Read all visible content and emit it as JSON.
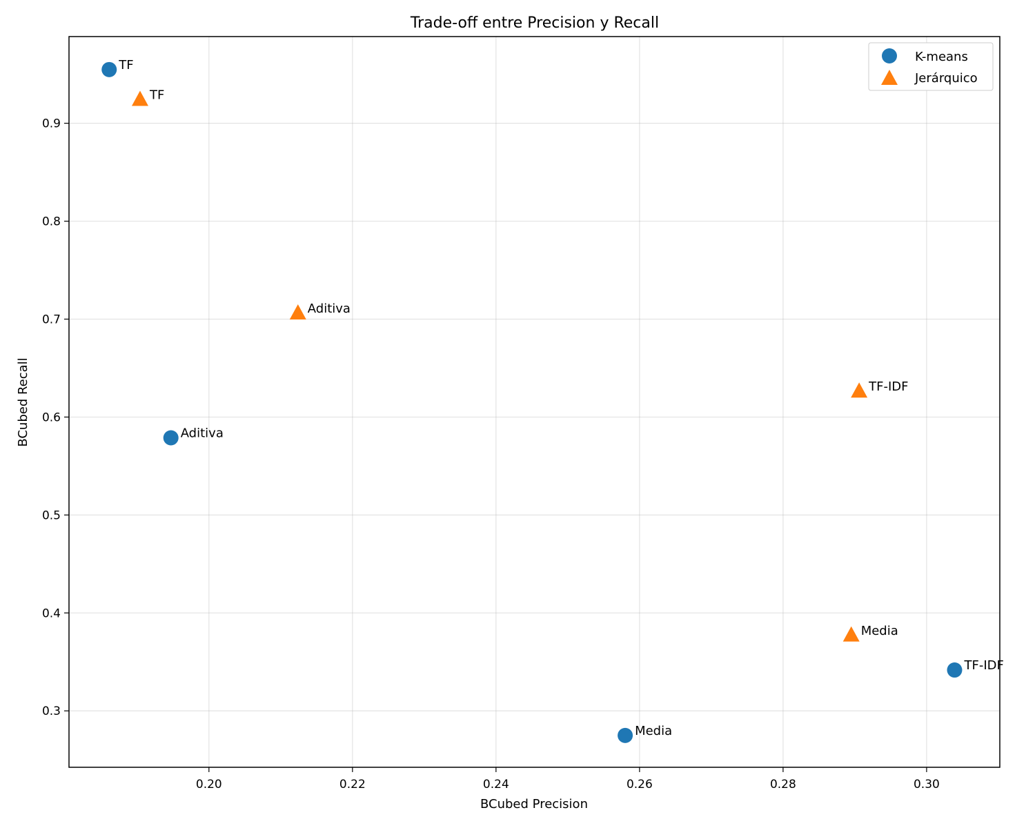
{
  "chart_data": {
    "type": "scatter",
    "title": "Trade-off entre Precision y Recall",
    "xlabel": "BCubed Precision",
    "ylabel": "BCubed Recall",
    "xlim": [
      0.1805,
      0.3102
    ],
    "ylim": [
      0.2424,
      0.9885
    ],
    "xticks": [
      0.2,
      0.22,
      0.24,
      0.26,
      0.28,
      0.3
    ],
    "xtick_labels": [
      "0.20",
      "0.22",
      "0.24",
      "0.26",
      "0.28",
      "0.30"
    ],
    "yticks": [
      0.3,
      0.4,
      0.5,
      0.6,
      0.7,
      0.8,
      0.9
    ],
    "ytick_labels": [
      "0.3",
      "0.4",
      "0.5",
      "0.6",
      "0.7",
      "0.8",
      "0.9"
    ],
    "grid": true,
    "legend_position": "top-right",
    "series": [
      {
        "name": "K-means",
        "marker": "circle",
        "color": "#1f77b4",
        "points": [
          {
            "x": 0.1861,
            "y": 0.9548,
            "label": "TF"
          },
          {
            "x": 0.1947,
            "y": 0.5788,
            "label": "Aditiva"
          },
          {
            "x": 0.258,
            "y": 0.2749,
            "label": "Media"
          },
          {
            "x": 0.3039,
            "y": 0.3417,
            "label": "TF-IDF"
          }
        ]
      },
      {
        "name": "Jerárquico",
        "marker": "triangle",
        "color": "#ff7f0e",
        "points": [
          {
            "x": 0.1904,
            "y": 0.924,
            "label": "TF"
          },
          {
            "x": 0.2124,
            "y": 0.706,
            "label": "Aditiva"
          },
          {
            "x": 0.2906,
            "y": 0.6262,
            "label": "TF-IDF"
          },
          {
            "x": 0.2895,
            "y": 0.3771,
            "label": "Media"
          }
        ]
      }
    ]
  }
}
